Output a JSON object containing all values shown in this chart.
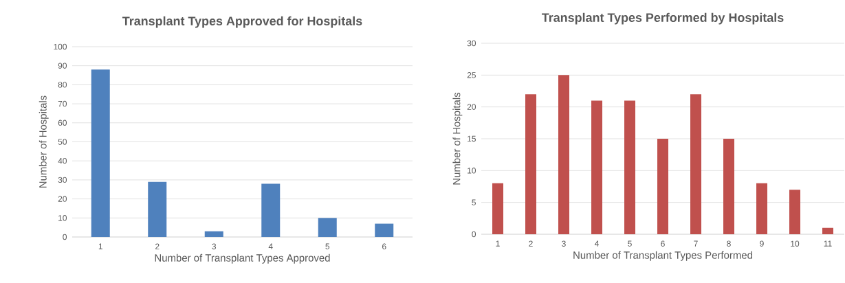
{
  "chart_data": [
    {
      "type": "bar",
      "title": "Transplant Types Approved for Hospitals",
      "xlabel": "Number of Transplant Types Approved",
      "ylabel": "Number of Hospitals",
      "categories": [
        "1",
        "2",
        "3",
        "4",
        "5",
        "6"
      ],
      "values": [
        88,
        29,
        3,
        28,
        10,
        7
      ],
      "color": "#4f81bd",
      "ylim": [
        0,
        100
      ],
      "yticks": [
        0,
        10,
        20,
        30,
        40,
        50,
        60,
        70,
        80,
        90,
        100
      ],
      "grid": "y"
    },
    {
      "type": "bar",
      "title": "Transplant Types Performed by Hospitals",
      "xlabel": "Number of Transplant Types Performed",
      "ylabel": "Number of Hospitals",
      "categories": [
        "1",
        "2",
        "3",
        "4",
        "5",
        "6",
        "7",
        "8",
        "9",
        "10",
        "11"
      ],
      "values": [
        8,
        22,
        25,
        21,
        21,
        15,
        22,
        15,
        8,
        7,
        1
      ],
      "color": "#c0504d",
      "ylim": [
        0,
        30
      ],
      "yticks": [
        0,
        5,
        10,
        15,
        20,
        25,
        30
      ],
      "grid": "y"
    }
  ]
}
